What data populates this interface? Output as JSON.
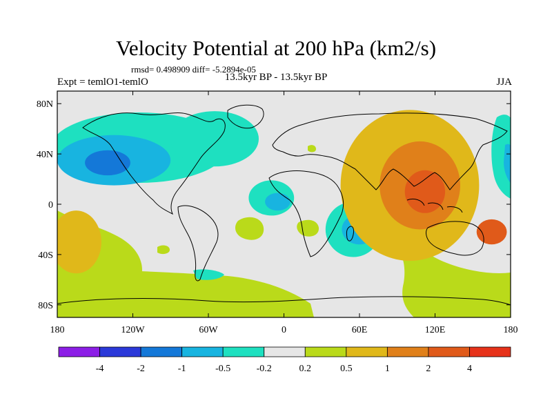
{
  "chart_data": {
    "type": "heatmap",
    "title": "Velocity Potential at 200 hPa (km2/s)",
    "stats_text": "rmsd= 0.498909 diff= -5.2894e-05",
    "experiment_text": "Expt = temlO1-temlO",
    "period_text": "13.5kyr BP - 13.5kyr BP",
    "season": "JJA",
    "variable": "Velocity Potential",
    "level": "200 hPa",
    "units": "km2/s",
    "x_range": [
      -180,
      180
    ],
    "y_range": [
      -90,
      90
    ],
    "x_ticks": [
      {
        "value": -180,
        "label": "180"
      },
      {
        "value": -120,
        "label": "120W"
      },
      {
        "value": -60,
        "label": "60W"
      },
      {
        "value": 0,
        "label": "0"
      },
      {
        "value": 60,
        "label": "60E"
      },
      {
        "value": 120,
        "label": "120E"
      },
      {
        "value": 180,
        "label": "180"
      }
    ],
    "y_ticks": [
      {
        "value": 80,
        "label": "80N"
      },
      {
        "value": 40,
        "label": "40N"
      },
      {
        "value": 0,
        "label": "0"
      },
      {
        "value": -40,
        "label": "40S"
      },
      {
        "value": -80,
        "label": "80S"
      }
    ],
    "colorbar": {
      "colors": [
        "#8c1ee6",
        "#2b39d9",
        "#1478d8",
        "#18b4e0",
        "#1ee0c0",
        "#e6e6e6",
        "#bada1a",
        "#e0b81a",
        "#e0801a",
        "#e05a1a",
        "#e6321a"
      ],
      "bounds": [
        "-4",
        "-2",
        "-1",
        "-0.5",
        "-0.2",
        "0.2",
        "0.5",
        "1",
        "2",
        "4"
      ]
    },
    "regions": [
      {
        "name": "north-pacific-north-america-negative",
        "level": -0.5,
        "center": [
          -115,
          45
        ],
        "radius": [
          70,
          28
        ]
      },
      {
        "name": "north-pacific-core-negative",
        "level": -1,
        "center": [
          -135,
          35
        ],
        "radius": [
          45,
          20
        ]
      },
      {
        "name": "north-pacific-inner-negative",
        "level": -2,
        "center": [
          -140,
          33
        ],
        "radius": [
          18,
          10
        ]
      },
      {
        "name": "north-atlantic-negative",
        "level": -0.5,
        "center": [
          -55,
          52
        ],
        "radius": [
          35,
          22
        ]
      },
      {
        "name": "equatorial-atlantic-africa-negative",
        "level": -0.5,
        "center": [
          -10,
          5
        ],
        "radius": [
          18,
          14
        ]
      },
      {
        "name": "equatorial-atlantic-core-negative",
        "level": -1,
        "center": [
          -5,
          2
        ],
        "radius": [
          10,
          7
        ]
      },
      {
        "name": "southwest-indian-ocean-negative",
        "level": -0.5,
        "center": [
          55,
          -20
        ],
        "radius": [
          22,
          22
        ]
      },
      {
        "name": "southwest-indian-core-negative",
        "level": -1,
        "center": [
          60,
          -20
        ],
        "radius": [
          14,
          12
        ]
      },
      {
        "name": "asia-maritime-continent-positive",
        "level": 0.5,
        "center": [
          100,
          15
        ],
        "radius": [
          55,
          60
        ]
      },
      {
        "name": "maritime-continent-core-positive",
        "level": 1,
        "center": [
          108,
          15
        ],
        "radius": [
          32,
          35
        ]
      },
      {
        "name": "maritime-continent-inner-positive",
        "level": 2,
        "center": [
          112,
          10
        ],
        "radius": [
          16,
          17
        ]
      },
      {
        "name": "southwest-pacific-positive",
        "level": 2,
        "center": [
          165,
          -22
        ],
        "radius": [
          12,
          10
        ]
      },
      {
        "name": "southeast-pacific-positive",
        "level": 0.5,
        "center": [
          -165,
          -30
        ],
        "radius": [
          20,
          25
        ]
      }
    ]
  }
}
